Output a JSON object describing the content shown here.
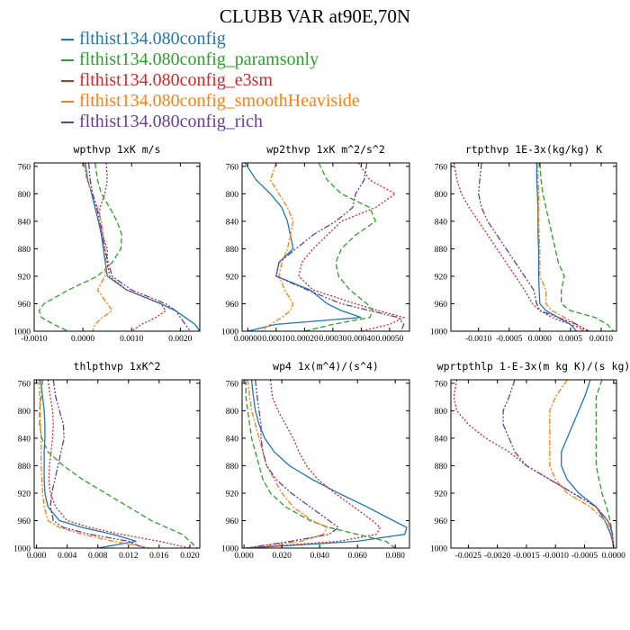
{
  "title": "CLUBB VAR at90E,70N",
  "legend": [
    {
      "name": "flthist134.080config",
      "color": "#1f77b4"
    },
    {
      "name": "flthist134.080config_paramsonly",
      "color": "#2ca02c"
    },
    {
      "name": "flthist134.080config_e3sm",
      "color": "#d62728"
    },
    {
      "name": "flthist134.080config_smoothHeaviside",
      "color": "#ff7f0e"
    },
    {
      "name": "flthist134.080config_rich",
      "color": "#6a3d9a"
    }
  ],
  "chart_data": [
    {
      "type": "line",
      "title": "wpthvp  1xK m/s",
      "xlim": [
        -0.001,
        0.0024
      ],
      "xticks": [
        -0.001,
        0.0,
        0.001,
        0.002
      ],
      "xtick_labels": [
        "-0.0010",
        "0.0000",
        "0.0010",
        "0.0020"
      ],
      "ylim": [
        755,
        1000
      ],
      "yticks": [
        760,
        800,
        840,
        880,
        920,
        960,
        1000
      ],
      "ytick_labels": [
        "760",
        "800",
        "840",
        "880",
        "920",
        "960",
        "1000"
      ],
      "y": [
        755,
        780,
        800,
        820,
        840,
        860,
        880,
        900,
        920,
        940,
        960,
        970,
        980,
        990,
        1000
      ],
      "series": [
        {
          "name": "flthist134.080config",
          "values": [
            5e-05,
            0.0001,
            0.00018,
            0.00025,
            0.00032,
            0.00038,
            0.00042,
            0.00046,
            0.0005,
            0.0009,
            0.0016,
            0.0019,
            0.0021,
            0.0023,
            0.0024
          ]
        },
        {
          "name": "flthist134.080config_paramsonly",
          "values": [
            0.00025,
            0.0003,
            0.00038,
            0.00055,
            0.0007,
            0.0008,
            0.00078,
            0.0006,
            0.0003,
            -0.0003,
            -0.0008,
            -0.0009,
            -0.00085,
            -0.0006,
            -0.0003
          ]
        },
        {
          "name": "flthist134.080config_e3sm",
          "values": [
            0.00048,
            0.0005,
            0.00045,
            0.00035,
            0.00032,
            0.0004,
            0.0005,
            0.0005,
            0.00055,
            0.0009,
            0.0016,
            0.0017,
            0.0015,
            0.0012,
            0.001
          ]
        },
        {
          "name": "flthist134.080config_smoothHeaviside",
          "values": [
            2e-05,
            8e-05,
            0.0002,
            0.0003,
            0.00038,
            0.00042,
            0.00045,
            0.00048,
            0.00045,
            0.0003,
            0.0005,
            0.0006,
            0.0004,
            0.00025,
            0.0002
          ]
        },
        {
          "name": "flthist134.080config_rich",
          "values": [
            0.00012,
            0.00015,
            0.0002,
            0.00028,
            0.00035,
            0.0004,
            0.00045,
            0.00052,
            0.0006,
            0.001,
            0.0017,
            0.0019,
            0.002,
            0.0021,
            0.0022
          ]
        }
      ]
    },
    {
      "type": "line",
      "title": "wp2thvp  1xK m^2/s^2",
      "xlim": [
        -2e-05,
        0.00057
      ],
      "xticks": [
        0.0,
        0.0001,
        0.0002,
        0.0003,
        0.0004,
        0.0005
      ],
      "xtick_labels": [
        "0.00000",
        "0.00010",
        "0.00020",
        "0.00030",
        "0.00040",
        "0.00050"
      ],
      "ylim": [
        755,
        1000
      ],
      "yticks": [
        760,
        800,
        840,
        880,
        920,
        960,
        1000
      ],
      "ytick_labels": [
        "760",
        "800",
        "840",
        "880",
        "920",
        "960",
        "1000"
      ],
      "y": [
        755,
        780,
        800,
        820,
        840,
        860,
        880,
        900,
        920,
        940,
        960,
        970,
        980,
        990,
        1000
      ],
      "series": [
        {
          "name": "flthist134.080config",
          "values": [
            -1e-05,
            3e-05,
            8e-05,
            0.00012,
            0.00014,
            0.00015,
            0.00016,
            0.00011,
            0.0001,
            0.00022,
            0.00028,
            0.00033,
            0.0004,
            0.0001,
            0.0
          ],
          "_note": "approximate"
        },
        {
          "name": "flthist134.080config_paramsonly",
          "values": [
            0.00025,
            0.00028,
            0.00033,
            0.00043,
            0.00045,
            0.00038,
            0.00033,
            0.00031,
            0.00032,
            0.00036,
            0.00042,
            0.00044,
            0.00043,
            0.0003,
            0.0002
          ]
        },
        {
          "name": "flthist134.080config_e3sm",
          "values": [
            0.00039,
            0.00043,
            0.00052,
            0.00045,
            0.00033,
            0.00028,
            0.00023,
            0.00019,
            0.00018,
            0.00023,
            0.00038,
            0.00046,
            0.00055,
            0.0005,
            0.0004
          ]
        },
        {
          "name": "flthist134.080config_smoothHeaviside",
          "values": [
            0.0001,
            8e-05,
            0.00011,
            0.00014,
            0.00016,
            0.00015,
            0.00014,
            0.00012,
            0.00011,
            0.00013,
            0.00016,
            0.00015,
            0.00012,
            8e-05,
            5e-05
          ]
        },
        {
          "name": "flthist134.080config_rich",
          "values": [
            0.00042,
            0.00041,
            0.00038,
            0.00037,
            0.00031,
            0.00023,
            0.00017,
            0.00011,
            0.0001,
            0.00021,
            0.00033,
            0.00043,
            0.00053,
            0.00055,
            0.00054
          ]
        }
      ]
    },
    {
      "type": "line",
      "title": "rtpthvp  1E-3x(kg/kg) K",
      "xlim": [
        -0.00145,
        0.00125
      ],
      "xticks": [
        -0.001,
        -0.0005,
        0.0,
        0.0005,
        0.001
      ],
      "xtick_labels": [
        "-0.0010",
        "-0.0005",
        "0.0000",
        "0.0005",
        "0.0010"
      ],
      "ylim": [
        755,
        1000
      ],
      "yticks": [
        760,
        800,
        840,
        880,
        920,
        960,
        1000
      ],
      "ytick_labels": [
        "760",
        "800",
        "840",
        "880",
        "920",
        "960",
        "1000"
      ],
      "y": [
        755,
        780,
        800,
        820,
        840,
        860,
        880,
        900,
        920,
        940,
        960,
        970,
        980,
        990,
        1000
      ],
      "series": [
        {
          "name": "flthist134.080config",
          "values": [
            -5e-05,
            -5e-05,
            -4e-05,
            -3e-05,
            -3e-05,
            -3e-05,
            -2e-05,
            -2e-05,
            -2e-05,
            -1e-05,
            0.0,
            0.0001,
            0.0003,
            0.0005,
            0.0006
          ]
        },
        {
          "name": "flthist134.080config_paramsonly",
          "values": [
            0.0,
            2e-05,
            5e-05,
            0.0001,
            0.00015,
            0.0002,
            0.00025,
            0.0003,
            0.0004,
            0.00035,
            0.00035,
            0.0005,
            0.0009,
            0.0011,
            0.0012
          ]
        },
        {
          "name": "flthist134.080config_e3sm",
          "values": [
            -0.0014,
            -0.00135,
            -0.00128,
            -0.00115,
            -0.001,
            -0.00085,
            -0.0007,
            -0.00055,
            -0.0004,
            -0.00025,
            -0.00012,
            0.0,
            0.0002,
            0.0005,
            0.0008
          ]
        },
        {
          "name": "flthist134.080config_smoothHeaviside",
          "values": [
            -3e-05,
            -3e-05,
            -2e-05,
            -2e-05,
            -2e-05,
            -1e-05,
            0.0,
            0.0,
            0.0,
            0.0001,
            0.0001,
            0.0002,
            0.0004,
            0.0006,
            0.0007
          ]
        },
        {
          "name": "flthist134.080config_rich",
          "values": [
            -0.00095,
            -0.00098,
            -0.001,
            -0.00095,
            -0.00085,
            -0.0007,
            -0.00055,
            -0.0004,
            -0.00025,
            -0.0001,
            -5e-05,
            0.0,
            0.0003,
            0.0006,
            0.0008
          ]
        }
      ]
    },
    {
      "type": "line",
      "title": "thlpthvp  1xK^2",
      "xlim": [
        -0.0003,
        0.0213
      ],
      "xticks": [
        0.0,
        0.004,
        0.008,
        0.012,
        0.016,
        0.02
      ],
      "xtick_labels": [
        "0.000",
        "0.004",
        "0.008",
        "0.012",
        "0.016",
        "0.020"
      ],
      "ylim": [
        755,
        1000
      ],
      "yticks": [
        760,
        800,
        840,
        880,
        920,
        960,
        1000
      ],
      "ytick_labels": [
        "760",
        "800",
        "840",
        "880",
        "920",
        "960",
        "1000"
      ],
      "y": [
        755,
        780,
        800,
        820,
        840,
        860,
        880,
        900,
        920,
        940,
        960,
        970,
        980,
        990,
        1000
      ],
      "series": [
        {
          "name": "flthist134.080config",
          "values": [
            0.0005,
            0.0008,
            0.001,
            0.0011,
            0.0011,
            0.001,
            0.001,
            0.001,
            0.0011,
            0.0015,
            0.003,
            0.006,
            0.01,
            0.013,
            0.008
          ]
        },
        {
          "name": "flthist134.080config_paramsonly",
          "values": [
            0.0008,
            0.0006,
            0.0004,
            0.0004,
            0.0007,
            0.0015,
            0.0035,
            0.006,
            0.009,
            0.012,
            0.015,
            0.017,
            0.019,
            0.02,
            0.021
          ]
        },
        {
          "name": "flthist134.080config_e3sm",
          "values": [
            0.0015,
            0.0018,
            0.0021,
            0.0022,
            0.0021,
            0.0019,
            0.0017,
            0.0016,
            0.0018,
            0.0025,
            0.004,
            0.007,
            0.011,
            0.016,
            0.02
          ]
        },
        {
          "name": "flthist134.080config_smoothHeaviside",
          "values": [
            0.0003,
            0.0004,
            0.0005,
            0.0005,
            0.0006,
            0.0006,
            0.0006,
            0.0007,
            0.0008,
            0.001,
            0.0015,
            0.003,
            0.006,
            0.01,
            0.015
          ]
        },
        {
          "name": "flthist134.080config_rich",
          "values": [
            0.0022,
            0.0025,
            0.003,
            0.0035,
            0.0036,
            0.0032,
            0.0028,
            0.0024,
            0.002,
            0.0018,
            0.0022,
            0.0035,
            0.007,
            0.012,
            0.014
          ]
        }
      ]
    },
    {
      "type": "line",
      "title": "wp4  1x(m^4)/(s^4)",
      "xlim": [
        -0.001,
        0.0875
      ],
      "xticks": [
        0.0,
        0.02,
        0.04,
        0.06,
        0.08
      ],
      "xtick_labels": [
        "0.000",
        "0.020",
        "0.040",
        "0.060",
        "0.080"
      ],
      "ylim": [
        755,
        1000
      ],
      "yticks": [
        760,
        800,
        840,
        880,
        920,
        960,
        1000
      ],
      "ytick_labels": [
        "760",
        "800",
        "840",
        "880",
        "920",
        "960",
        "1000"
      ],
      "y": [
        755,
        780,
        800,
        820,
        840,
        860,
        880,
        900,
        920,
        940,
        960,
        970,
        980,
        990,
        1000
      ],
      "series": [
        {
          "name": "flthist134.080config",
          "values": [
            0.004,
            0.005,
            0.006,
            0.008,
            0.011,
            0.016,
            0.024,
            0.036,
            0.05,
            0.065,
            0.079,
            0.086,
            0.085,
            0.06,
            0.002
          ]
        },
        {
          "name": "flthist134.080config_paramsonly",
          "values": [
            0.001,
            0.001,
            0.002,
            0.003,
            0.004,
            0.006,
            0.008,
            0.01,
            0.014,
            0.022,
            0.035,
            0.045,
            0.06,
            0.075,
            0.08
          ]
        },
        {
          "name": "flthist134.080config_e3sm",
          "values": [
            0.014,
            0.015,
            0.018,
            0.022,
            0.026,
            0.029,
            0.033,
            0.039,
            0.048,
            0.058,
            0.068,
            0.072,
            0.07,
            0.05,
            0.001
          ]
        },
        {
          "name": "flthist134.080config_smoothHeaviside",
          "values": [
            0.002,
            0.003,
            0.004,
            0.006,
            0.008,
            0.01,
            0.012,
            0.016,
            0.02,
            0.026,
            0.036,
            0.044,
            0.042,
            0.03,
            0.001
          ]
        },
        {
          "name": "flthist134.080config_rich",
          "values": [
            0.006,
            0.007,
            0.008,
            0.009,
            0.009,
            0.01,
            0.012,
            0.017,
            0.025,
            0.035,
            0.045,
            0.05,
            0.045,
            0.025,
            0.001
          ]
        }
      ]
    },
    {
      "type": "line",
      "title": "wprtpthlp  1-E-3x(m kg K)/(s kg)",
      "xlim": [
        -0.0028,
        5e-05
      ],
      "xticks": [
        -0.0025,
        -0.002,
        -0.0015,
        -0.001,
        -0.0005,
        0.0
      ],
      "xtick_labels": [
        "-0.0025",
        "-0.0020",
        "-0.0015",
        "-0.0010",
        "-0.0005",
        "0.0000"
      ],
      "ylim": [
        755,
        1000
      ],
      "yticks": [
        760,
        800,
        840,
        880,
        920,
        960,
        1000
      ],
      "ytick_labels": [
        "760",
        "800",
        "840",
        "880",
        "920",
        "960",
        "1000"
      ],
      "y": [
        755,
        780,
        800,
        820,
        840,
        860,
        880,
        900,
        920,
        940,
        960,
        970,
        980,
        990,
        1000
      ],
      "series": [
        {
          "name": "flthist134.080config",
          "values": [
            -0.0004,
            -0.0005,
            -0.0006,
            -0.0007,
            -0.0008,
            -0.0009,
            -0.0009,
            -0.0008,
            -0.0006,
            -0.0003,
            -0.00015,
            -0.0001,
            -5e-05,
            -2e-05,
            0.0
          ]
        },
        {
          "name": "flthist134.080config_paramsonly",
          "values": [
            -0.0002,
            -0.0003,
            -0.0003,
            -0.0003,
            -0.0003,
            -0.0003,
            -0.0003,
            -0.00025,
            -0.0002,
            -0.00012,
            -6e-05,
            -4e-05,
            -2e-05,
            -1e-05,
            0.0
          ]
        },
        {
          "name": "flthist134.080config_e3sm",
          "values": [
            -0.0027,
            -0.00275,
            -0.0027,
            -0.0025,
            -0.0022,
            -0.0018,
            -0.0015,
            -0.0011,
            -0.0007,
            -0.0003,
            -0.0001,
            -5e-05,
            -2e-05,
            -1e-05,
            0.0
          ]
        },
        {
          "name": "flthist134.080config_smoothHeaviside",
          "values": [
            -0.0008,
            -0.001,
            -0.0011,
            -0.0011,
            -0.0011,
            -0.0011,
            -0.0011,
            -0.001,
            -0.0008,
            -0.0004,
            -0.00015,
            -8e-05,
            -3e-05,
            -1e-05,
            0.0
          ]
        },
        {
          "name": "flthist134.080config_rich",
          "values": [
            -0.0017,
            -0.0018,
            -0.0019,
            -0.0019,
            -0.0018,
            -0.0017,
            -0.0015,
            -0.0011,
            -0.0007,
            -0.0003,
            -0.0001,
            -5e-05,
            -2e-05,
            -1e-05,
            0.0
          ]
        }
      ]
    }
  ]
}
